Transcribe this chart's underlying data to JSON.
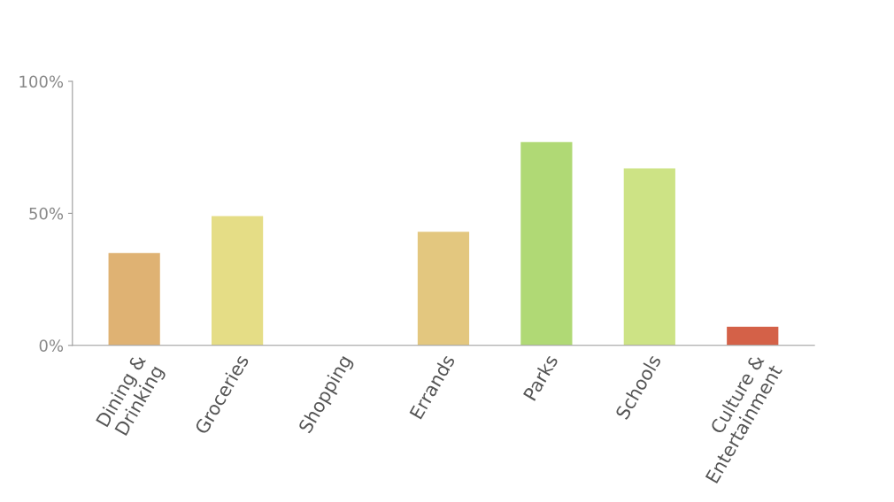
{
  "chart_data": {
    "type": "bar",
    "categories": [
      "Dining &\nDrinking",
      "Groceries",
      "Shopping",
      "Errands",
      "Parks",
      "Schools",
      "Culture &\nEntertainment"
    ],
    "values": [
      35,
      49,
      0,
      43,
      77,
      67,
      7
    ],
    "colors": [
      "#dfb273",
      "#e5dd86",
      "#e3c77f",
      "#e3c77f",
      "#b0d975",
      "#cde385",
      "#d46148"
    ],
    "ylim": [
      0,
      100
    ],
    "yticks": [
      {
        "value": 0,
        "label": "0%"
      },
      {
        "value": 50,
        "label": "50%"
      },
      {
        "value": 100,
        "label": "100%"
      }
    ],
    "grid": false
  }
}
